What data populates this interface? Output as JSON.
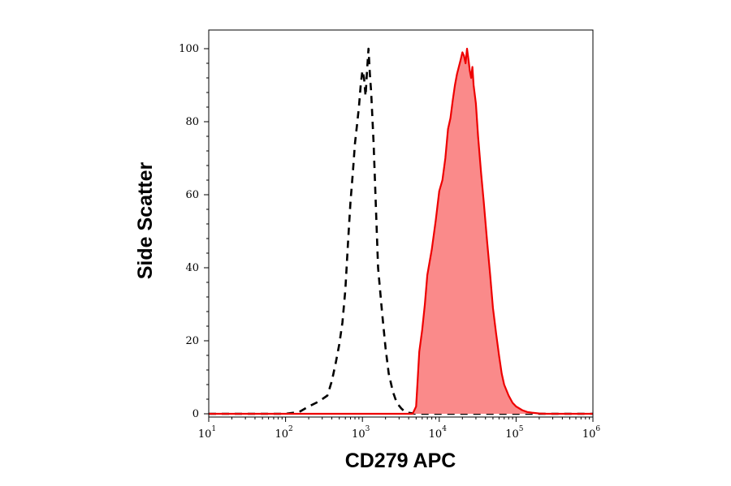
{
  "chart_data": {
    "type": "area",
    "xlabel": "CD279 APC",
    "ylabel": "Side Scatter",
    "xscale": "log",
    "xlim": [
      10,
      1000000
    ],
    "ylim": [
      0,
      100
    ],
    "x_ticks": [
      {
        "base": "10",
        "exp": "1",
        "value": 10
      },
      {
        "base": "10",
        "exp": "2",
        "value": 100
      },
      {
        "base": "10",
        "exp": "3",
        "value": 1000
      },
      {
        "base": "10",
        "exp": "4",
        "value": 10000
      },
      {
        "base": "10",
        "exp": "5",
        "value": 100000
      },
      {
        "base": "10",
        "exp": "6",
        "value": 1000000
      }
    ],
    "y_ticks": [
      "0",
      "20",
      "40",
      "60",
      "80",
      "100"
    ],
    "grid": false,
    "legend": "none",
    "series": [
      {
        "style": "dashed-outline",
        "color": "#000000",
        "x": [
          10,
          100,
          150,
          200,
          250,
          300,
          350,
          400,
          450,
          500,
          550,
          600,
          650,
          700,
          750,
          800,
          850,
          900,
          950,
          1000,
          1050,
          1100,
          1150,
          1200,
          1250,
          1300,
          1400,
          1500,
          1600,
          1800,
          2000,
          2200,
          2500,
          2800,
          3200,
          3600,
          4200,
          5000,
          1000000
        ],
        "y": [
          0,
          0,
          0.5,
          2,
          3,
          4,
          5,
          9,
          14,
          19,
          25,
          34,
          47,
          58,
          66,
          74,
          79,
          84,
          90,
          94,
          92,
          87,
          94,
          100,
          93,
          88,
          74,
          56,
          40,
          28,
          18,
          11,
          6,
          3,
          1.5,
          0.5,
          0.2,
          0,
          0
        ]
      },
      {
        "style": "filled",
        "color": "#ee0000",
        "fill": "#fa8a8a",
        "x": [
          10,
          4500,
          5000,
          5200,
          5500,
          6000,
          6500,
          7000,
          8000,
          9000,
          10000,
          11000,
          12000,
          13000,
          14000,
          15000,
          16000,
          17000,
          18000,
          19000,
          20000,
          21000,
          22000,
          23000,
          24000,
          25000,
          26000,
          27000,
          28000,
          30000,
          32000,
          35000,
          38000,
          42000,
          46000,
          50000,
          55000,
          60000,
          65000,
          70000,
          80000,
          90000,
          100000,
          120000,
          140000,
          160000,
          200000,
          250000,
          1000000
        ],
        "y": [
          0,
          0,
          2,
          8,
          17,
          23,
          30,
          38,
          45,
          53,
          61,
          64,
          70,
          78,
          81,
          86,
          90,
          93,
          95,
          97,
          99,
          98,
          96,
          100,
          97,
          94,
          92,
          95,
          90,
          85,
          76,
          66,
          58,
          47,
          38,
          29,
          22,
          16,
          11,
          8,
          5,
          3,
          2,
          1,
          0.5,
          0.3,
          0.1,
          0,
          0
        ]
      }
    ]
  }
}
